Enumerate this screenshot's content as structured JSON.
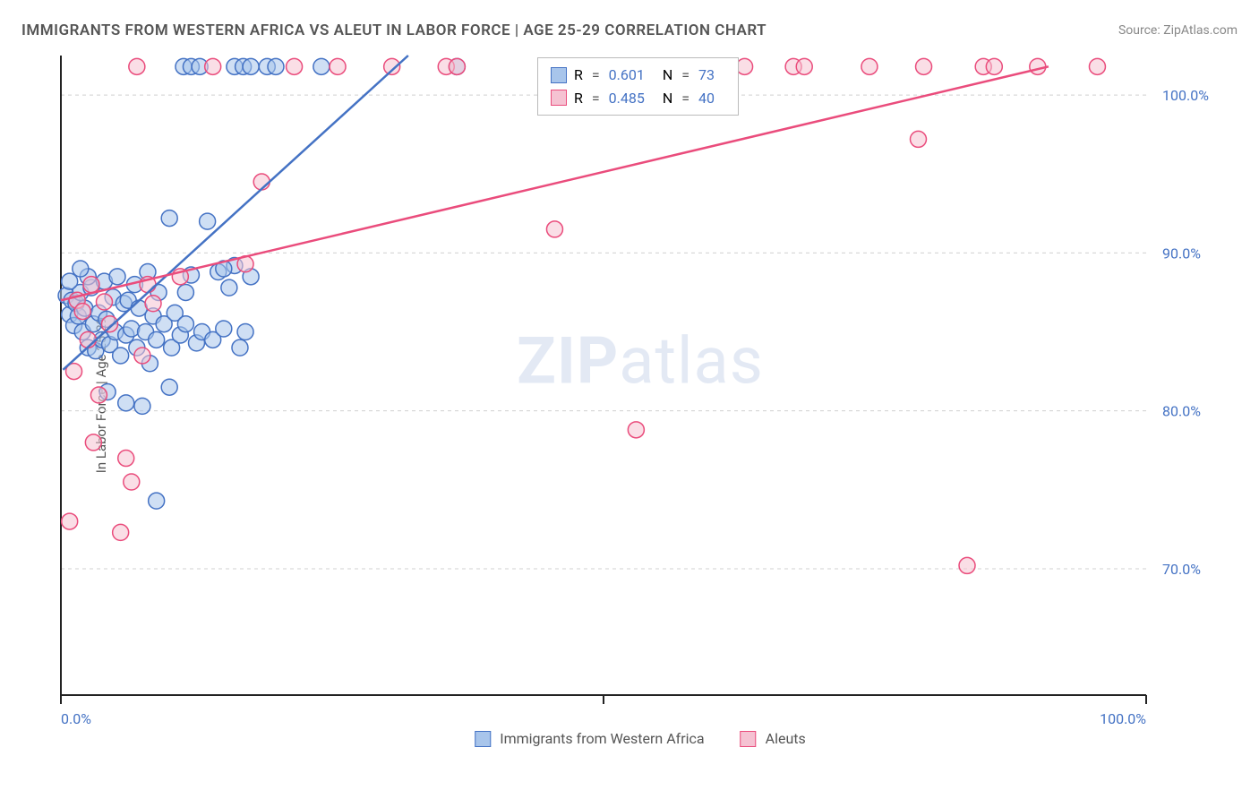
{
  "title": "IMMIGRANTS FROM WESTERN AFRICA VS ALEUT IN LABOR FORCE | AGE 25-29 CORRELATION CHART",
  "source_label": "Source:",
  "source_value": "ZipAtlas.com",
  "y_axis_label": "In Labor Force | Age 25-29",
  "watermark_a": "ZIP",
  "watermark_b": "atlas",
  "chart": {
    "type": "scatter",
    "xlim": [
      0,
      100
    ],
    "ylim": [
      62,
      102.5
    ],
    "x_ticks": [
      0,
      50,
      100
    ],
    "x_tick_labels": [
      "0.0%",
      "",
      "100.0%"
    ],
    "y_ticks": [
      70,
      80,
      90,
      100
    ],
    "y_tick_labels": [
      "70.0%",
      "80.0%",
      "90.0%",
      "100.0%"
    ],
    "grid_y": [
      70,
      80,
      90,
      100
    ],
    "grid_color": "#d0d0d0",
    "background_color": "#ffffff",
    "axis_color": "#222222",
    "marker_radius": 9,
    "marker_stroke_width": 1.5,
    "line_width": 2.5,
    "series": [
      {
        "name": "Immigrants from Western Africa",
        "fill": "#a8c5eb",
        "stroke": "#4472c4",
        "fill_opacity": 0.55,
        "r": 0.601,
        "n": 73,
        "trend": {
          "x1": 0.2,
          "y1": 82.6,
          "x2": 32,
          "y2": 102.5
        },
        "points": [
          [
            0.5,
            87.3
          ],
          [
            0.8,
            86.1
          ],
          [
            1.0,
            87.0
          ],
          [
            1.2,
            85.4
          ],
          [
            1.4,
            86.8
          ],
          [
            1.6,
            86.0
          ],
          [
            1.8,
            87.5
          ],
          [
            2.0,
            85.0
          ],
          [
            2.2,
            86.5
          ],
          [
            2.5,
            84.0
          ],
          [
            2.8,
            87.8
          ],
          [
            3.0,
            85.5
          ],
          [
            3.2,
            83.8
          ],
          [
            3.5,
            86.2
          ],
          [
            3.8,
            84.5
          ],
          [
            4.0,
            88.2
          ],
          [
            4.2,
            85.8
          ],
          [
            4.5,
            84.2
          ],
          [
            4.8,
            87.2
          ],
          [
            5.0,
            85.0
          ],
          [
            5.2,
            88.5
          ],
          [
            5.5,
            83.5
          ],
          [
            5.8,
            86.8
          ],
          [
            6.0,
            84.8
          ],
          [
            6.2,
            87.0
          ],
          [
            6.5,
            85.2
          ],
          [
            6.8,
            88.0
          ],
          [
            7.0,
            84.0
          ],
          [
            7.2,
            86.5
          ],
          [
            7.5,
            80.3
          ],
          [
            7.8,
            85.0
          ],
          [
            8.0,
            88.8
          ],
          [
            8.2,
            83.0
          ],
          [
            8.5,
            86.0
          ],
          [
            8.8,
            84.5
          ],
          [
            9.0,
            87.5
          ],
          [
            9.5,
            85.5
          ],
          [
            10.0,
            81.5
          ],
          [
            10.2,
            84.0
          ],
          [
            10.5,
            86.2
          ],
          [
            11.0,
            84.8
          ],
          [
            11.5,
            85.5
          ],
          [
            12.0,
            88.6
          ],
          [
            12.5,
            84.3
          ],
          [
            13.0,
            85.0
          ],
          [
            13.5,
            92.0
          ],
          [
            14.0,
            84.5
          ],
          [
            14.5,
            88.8
          ],
          [
            15.0,
            85.2
          ],
          [
            15.5,
            87.8
          ],
          [
            16.0,
            89.2
          ],
          [
            16.5,
            84.0
          ],
          [
            17.0,
            85.0
          ],
          [
            8.8,
            74.3
          ],
          [
            10.0,
            92.2
          ],
          [
            11.5,
            87.5
          ],
          [
            15.0,
            89.0
          ],
          [
            17.5,
            88.5
          ],
          [
            11.3,
            101.8
          ],
          [
            12.0,
            101.8
          ],
          [
            12.8,
            101.8
          ],
          [
            16.0,
            101.8
          ],
          [
            16.8,
            101.8
          ],
          [
            17.5,
            101.8
          ],
          [
            19.0,
            101.8
          ],
          [
            19.8,
            101.8
          ],
          [
            24.0,
            101.8
          ],
          [
            36.5,
            101.8
          ],
          [
            4.3,
            81.2
          ],
          [
            6.0,
            80.5
          ],
          [
            2.5,
            88.5
          ],
          [
            1.8,
            89.0
          ],
          [
            0.8,
            88.2
          ]
        ]
      },
      {
        "name": "Aleuts",
        "fill": "#f5c2d2",
        "stroke": "#ea4c7c",
        "fill_opacity": 0.55,
        "r": 0.485,
        "n": 40,
        "trend": {
          "x1": 0,
          "y1": 87.0,
          "x2": 91,
          "y2": 101.8
        },
        "points": [
          [
            0.8,
            73.0
          ],
          [
            1.5,
            87.0
          ],
          [
            2.0,
            86.3
          ],
          [
            2.5,
            84.5
          ],
          [
            3.0,
            78.0
          ],
          [
            4.5,
            85.5
          ],
          [
            5.5,
            72.3
          ],
          [
            6.0,
            77.0
          ],
          [
            6.5,
            75.5
          ],
          [
            7.5,
            83.5
          ],
          [
            8.5,
            86.8
          ],
          [
            11.0,
            88.5
          ],
          [
            17.0,
            89.3
          ],
          [
            18.5,
            94.5
          ],
          [
            7.0,
            101.8
          ],
          [
            14.0,
            101.8
          ],
          [
            21.5,
            101.8
          ],
          [
            25.5,
            101.8
          ],
          [
            30.5,
            101.8
          ],
          [
            35.5,
            101.8
          ],
          [
            36.5,
            101.8
          ],
          [
            45.5,
            91.5
          ],
          [
            53.0,
            78.8
          ],
          [
            58.5,
            101.8
          ],
          [
            63.0,
            101.8
          ],
          [
            67.5,
            101.8
          ],
          [
            68.5,
            101.8
          ],
          [
            74.5,
            101.8
          ],
          [
            79.0,
            97.2
          ],
          [
            79.5,
            101.8
          ],
          [
            85.0,
            101.8
          ],
          [
            86.0,
            101.8
          ],
          [
            90.0,
            101.8
          ],
          [
            83.5,
            70.2
          ],
          [
            95.5,
            101.8
          ],
          [
            8.0,
            88.0
          ],
          [
            3.5,
            81.0
          ],
          [
            1.2,
            82.5
          ],
          [
            2.8,
            88.0
          ],
          [
            4.0,
            86.9
          ]
        ]
      }
    ]
  },
  "legend_bottom": {
    "series_a": "Immigrants from Western Africa",
    "series_b": "Aleuts"
  },
  "legend_top": {
    "r_label": "R",
    "n_label": "N",
    "eq": "="
  }
}
